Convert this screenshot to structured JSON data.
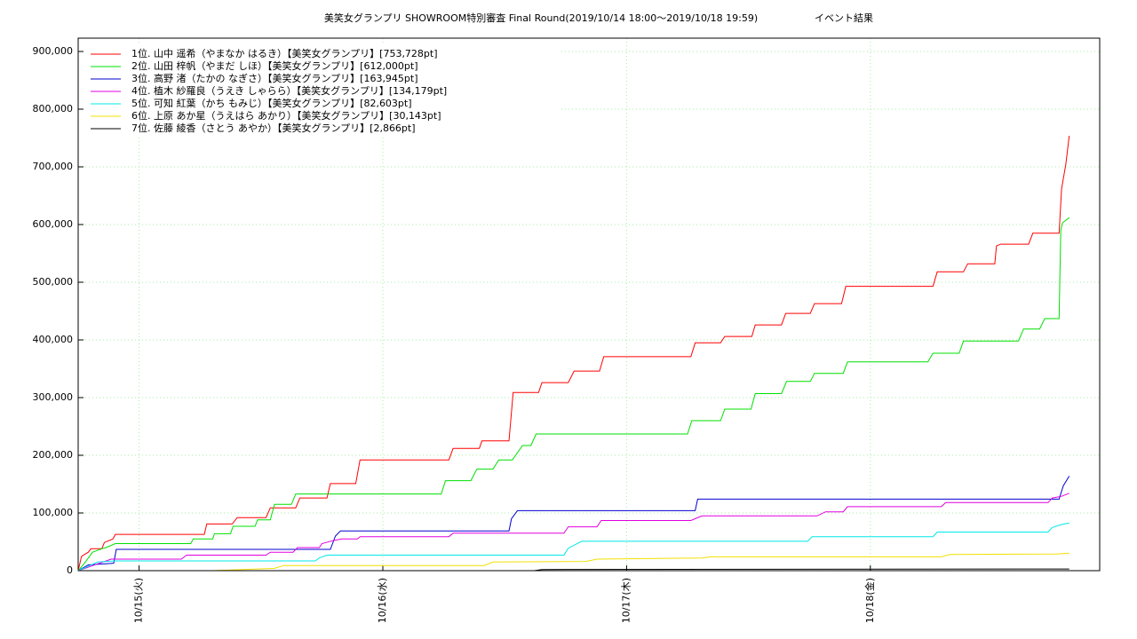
{
  "chart_data": {
    "type": "line",
    "title": "美笑女グランプリ SHOWROOM特別審査 Final Round(2019/10/14 18:00～2019/10/18 19:59)",
    "subtitle": "イベント結果",
    "xlim": [
      "10/14 18:00",
      "10/18 22:35"
    ],
    "xticks": [
      {
        "value": "10/15 00:00",
        "label": "10/15(火)"
      },
      {
        "value": "10/16 00:00",
        "label": "10/16(水)"
      },
      {
        "value": "10/17 00:00",
        "label": "10/17(木)"
      },
      {
        "value": "10/18 00:00",
        "label": "10/18(金)"
      }
    ],
    "ylim": [
      0,
      923077
    ],
    "yticks": [
      0,
      {
        "value": 100000,
        "label": "100,000"
      },
      {
        "value": 200000,
        "label": "200,000"
      },
      {
        "value": 300000,
        "label": "300,000"
      },
      {
        "value": 400000,
        "label": "400,000"
      },
      {
        "value": 500000,
        "label": "500,000"
      },
      {
        "value": 600000,
        "label": "600,000"
      },
      {
        "value": 700000,
        "label": "700,000"
      },
      {
        "value": 800000,
        "label": "800,000"
      },
      {
        "value": 900000,
        "label": "900,000"
      }
    ],
    "grid": true,
    "legend": "top-left",
    "series": [
      {
        "name": "1位. 山中 遥希（やまなか はるき）【美笑女グランプリ】[753,728pt]",
        "color": "#ff0000",
        "x": [
          "10/14 18:00",
          "10/14 18:20",
          "10/14 19:00",
          "10/14 19:15",
          "10/14 20:20",
          "10/14 20:35",
          "10/14 21:25",
          "10/14 21:40",
          "10/15 06:25",
          "10/15 06:40",
          "10/15 09:10",
          "10/15 09:40",
          "10/15 12:30",
          "10/15 12:55",
          "10/15 15:25",
          "10/15 15:50",
          "10/15 18:30",
          "10/15 18:50",
          "10/15 21:20",
          "10/15 21:45",
          "10/16 06:30",
          "10/16 06:55",
          "10/16 09:30",
          "10/16 09:45",
          "10/16 12:25",
          "10/16 12:50",
          "10/16 15:20",
          "10/16 15:40",
          "10/16 18:15",
          "10/16 18:50",
          "10/16 21:20",
          "10/16 21:45",
          "10/17 06:20",
          "10/17 06:45",
          "10/17 09:15",
          "10/17 09:40",
          "10/17 12:20",
          "10/17 12:40",
          "10/17 15:15",
          "10/17 15:40",
          "10/17 18:05",
          "10/17 18:30",
          "10/17 21:10",
          "10/17 21:35",
          "10/18 06:10",
          "10/18 06:35",
          "10/18 09:10",
          "10/18 09:35",
          "10/18 12:15",
          "10/18 12:25",
          "10/18 12:50",
          "10/18 15:35",
          "10/18 16:00",
          "10/18 18:35",
          "10/18 18:50",
          "10/18 19:15",
          "10/18 19:35"
        ],
        "values": [
          0,
          25000,
          32000,
          38000,
          38000,
          49000,
          55000,
          63000,
          63000,
          81000,
          81000,
          92000,
          92000,
          109000,
          109000,
          126000,
          126000,
          151000,
          151000,
          192000,
          192000,
          212000,
          212000,
          225000,
          225000,
          309000,
          309000,
          326000,
          326000,
          346000,
          346000,
          371000,
          371000,
          395000,
          395000,
          406000,
          406000,
          426000,
          426000,
          446000,
          446000,
          463000,
          463000,
          493000,
          493000,
          518000,
          518000,
          532000,
          532000,
          563000,
          566000,
          566000,
          585000,
          585000,
          662000,
          705000,
          753728
        ]
      },
      {
        "name": "2位. 山田 梓帆（やまだ しほ）【美笑女グランプリ】[612,000pt]",
        "color": "#00e000",
        "x": [
          "10/14 18:00",
          "10/14 18:35",
          "10/14 19:25",
          "10/14 20:20",
          "10/14 20:45",
          "10/14 21:40",
          "10/15 05:05",
          "10/15 05:20",
          "10/15 07:15",
          "10/15 07:25",
          "10/15 09:00",
          "10/15 09:15",
          "10/15 11:25",
          "10/15 11:40",
          "10/15 12:55",
          "10/15 13:20",
          "10/15 15:00",
          "10/15 15:25",
          "10/16 05:45",
          "10/16 06:10",
          "10/16 08:40",
          "10/16 09:15",
          "10/16 10:50",
          "10/16 11:25",
          "10/16 12:45",
          "10/16 13:45",
          "10/16 14:35",
          "10/16 15:05",
          "10/17 06:00",
          "10/17 06:25",
          "10/17 09:15",
          "10/17 09:40",
          "10/17 12:15",
          "10/17 12:40",
          "10/17 15:15",
          "10/17 15:45",
          "10/17 18:05",
          "10/17 18:30",
          "10/17 21:20",
          "10/17 21:45",
          "10/18 05:40",
          "10/18 06:10",
          "10/18 08:45",
          "10/18 09:10",
          "10/18 14:35",
          "10/18 15:05",
          "10/18 16:40",
          "10/18 17:10",
          "10/18 18:35",
          "10/18 18:45",
          "10/18 18:55",
          "10/18 19:35"
        ],
        "values": [
          0,
          12000,
          32000,
          38000,
          40000,
          47000,
          47000,
          55000,
          55000,
          64000,
          64000,
          77000,
          77000,
          88000,
          88000,
          115000,
          115000,
          133000,
          133000,
          156000,
          156000,
          176000,
          176000,
          192000,
          192000,
          217000,
          217000,
          237000,
          237000,
          260000,
          260000,
          280000,
          280000,
          307000,
          307000,
          328000,
          328000,
          342000,
          342000,
          362000,
          362000,
          377000,
          377000,
          398000,
          398000,
          419000,
          419000,
          437000,
          437000,
          590000,
          603000,
          612000
        ]
      },
      {
        "name": "3位. 高野 渚（たかの なぎさ）【美笑女グランプリ】[163,945pt]",
        "color": "#0000d0",
        "x": [
          "10/14 18:00",
          "10/14 19:00",
          "10/14 21:30",
          "10/14 21:45",
          "10/15 18:50",
          "10/15 19:20",
          "10/15 19:50",
          "10/16 12:25",
          "10/16 12:40",
          "10/16 13:15",
          "10/17 06:45",
          "10/17 07:00",
          "10/18 18:35",
          "10/18 19:00",
          "10/18 19:35"
        ],
        "values": [
          0,
          10000,
          13000,
          37000,
          37000,
          60000,
          69000,
          69000,
          90000,
          104000,
          104000,
          124000,
          124000,
          147000,
          163945
        ]
      },
      {
        "name": "4位. 植木 紗羅良（うえき しゃらら）【美笑女グランプリ】[134,179pt]",
        "color": "#e000e0",
        "x": [
          "10/14 18:00",
          "10/14 21:15",
          "10/15 04:10",
          "10/15 04:40",
          "10/15 12:30",
          "10/15 12:55",
          "10/15 15:10",
          "10/15 15:35",
          "10/15 17:45",
          "10/15 18:00",
          "10/15 19:05",
          "10/15 19:55",
          "10/15 21:30",
          "10/15 21:45",
          "10/16 06:30",
          "10/16 06:55",
          "10/16 17:50",
          "10/16 18:15",
          "10/16 21:05",
          "10/16 21:30",
          "10/17 06:20",
          "10/17 07:25",
          "10/17 18:45",
          "10/17 19:35",
          "10/17 21:20",
          "10/17 21:45",
          "10/18 07:00",
          "10/18 07:25",
          "10/18 17:30",
          "10/18 17:55",
          "10/18 18:50",
          "10/18 19:35"
        ],
        "values": [
          0,
          20000,
          20000,
          27000,
          27000,
          32000,
          32000,
          40000,
          40000,
          47000,
          52000,
          55000,
          55000,
          59000,
          59000,
          65000,
          65000,
          76000,
          76000,
          87000,
          87000,
          95000,
          95000,
          102000,
          102000,
          111000,
          111000,
          118000,
          118000,
          126000,
          129000,
          134179
        ]
      },
      {
        "name": "5位. 可知 紅葉（かち もみじ）【美笑女グランプリ】[82,603pt]",
        "color": "#00e8e8",
        "x": [
          "10/14 18:00",
          "10/14 19:55",
          "10/14 21:40",
          "10/15 17:20",
          "10/15 17:45",
          "10/15 18:30",
          "10/16 17:50",
          "10/16 18:15",
          "10/16 19:35",
          "10/17 17:50",
          "10/17 18:15",
          "10/18 06:10",
          "10/18 06:35",
          "10/18 17:30",
          "10/18 17:55",
          "10/18 18:50",
          "10/18 19:35"
        ],
        "values": [
          0,
          15000,
          17000,
          17000,
          22000,
          27000,
          27000,
          39000,
          51000,
          51000,
          59000,
          59000,
          67000,
          67000,
          75000,
          80000,
          82603
        ]
      },
      {
        "name": "6位. 上原 あか星（うえはら あかり）【美笑女グランプリ】[30,143pt]",
        "color": "#f0e000",
        "x": [
          "10/14 18:00",
          "10/15 07:15",
          "10/15 13:20",
          "10/15 14:15",
          "10/16 10:00",
          "10/16 10:50",
          "10/16 20:00",
          "10/16 21:05",
          "10/17 07:25",
          "10/17 08:15",
          "10/18 07:00",
          "10/18 07:50",
          "10/18 18:20",
          "10/18 19:15",
          "10/18 19:35"
        ],
        "values": [
          0,
          0,
          4000,
          9000,
          9000,
          15000,
          16000,
          20000,
          22000,
          24000,
          24000,
          28000,
          29000,
          30000,
          30143
        ]
      },
      {
        "name": "7位. 佐藤 綾香（さとう あやか）【美笑女グランプリ】[2,866pt]",
        "color": "#000000",
        "x": [
          "10/14 18:00",
          "10/16 14:55",
          "10/16 15:40",
          "10/18 19:35"
        ],
        "values": [
          0,
          0,
          2000,
          2866
        ]
      }
    ]
  }
}
